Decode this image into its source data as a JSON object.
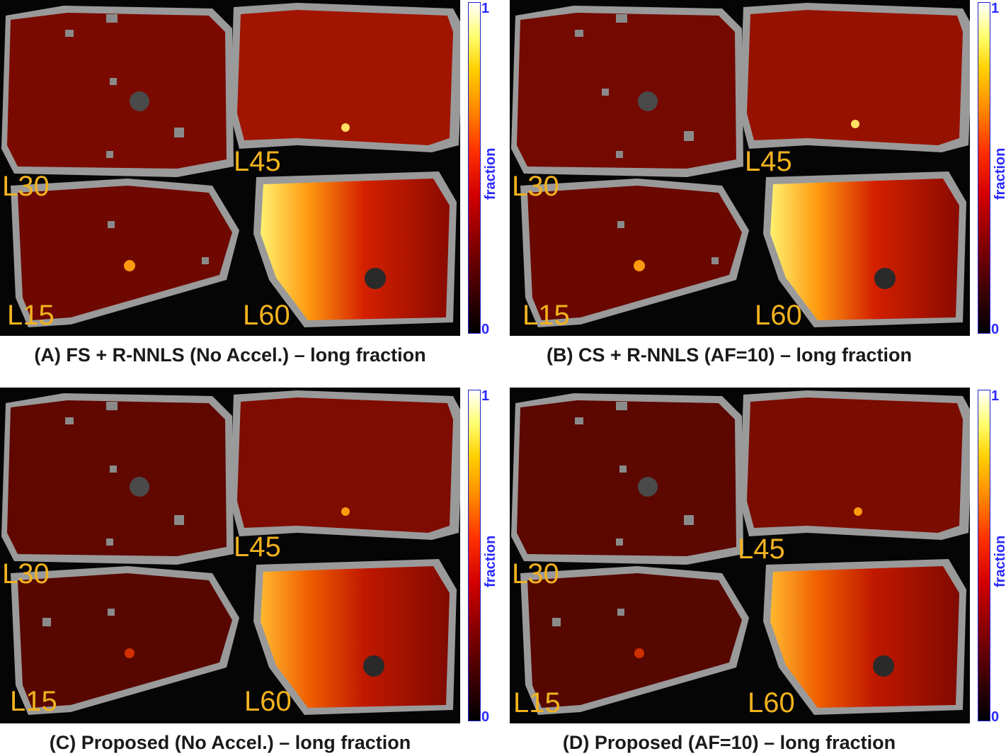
{
  "colorbar": {
    "max_tick": "1",
    "min_tick": "0",
    "title": "fraction"
  },
  "panels": [
    {
      "caption": "(A) FS + R-NNLS (No Accel.) – long fraction",
      "labels": {
        "l30": "L30",
        "l45": "L45",
        "l15": "L15",
        "l60": "L60"
      }
    },
    {
      "caption": "(B) CS + R-NNLS (AF=10) – long fraction",
      "labels": {
        "l30": "L30",
        "l45": "L45",
        "l15": "L15",
        "l60": "L60"
      }
    },
    {
      "caption": "(C) Proposed (No Accel.) – long fraction",
      "labels": {
        "l30": "L30",
        "l45": "L45",
        "l15": "L15",
        "l60": "L60"
      }
    },
    {
      "caption": "(D) Proposed (AF=10) – long fraction",
      "labels": {
        "l30": "L30",
        "l45": "L45",
        "l15": "L15",
        "l60": "L60"
      }
    }
  ],
  "colors": {
    "label_orange": "#f2b21e",
    "colorbar_axis": "#2a2aff",
    "background_tissue": "#050505",
    "heat_low": "#3a0000",
    "heat_mid": "#c81400",
    "heat_high": "#ffe060"
  }
}
